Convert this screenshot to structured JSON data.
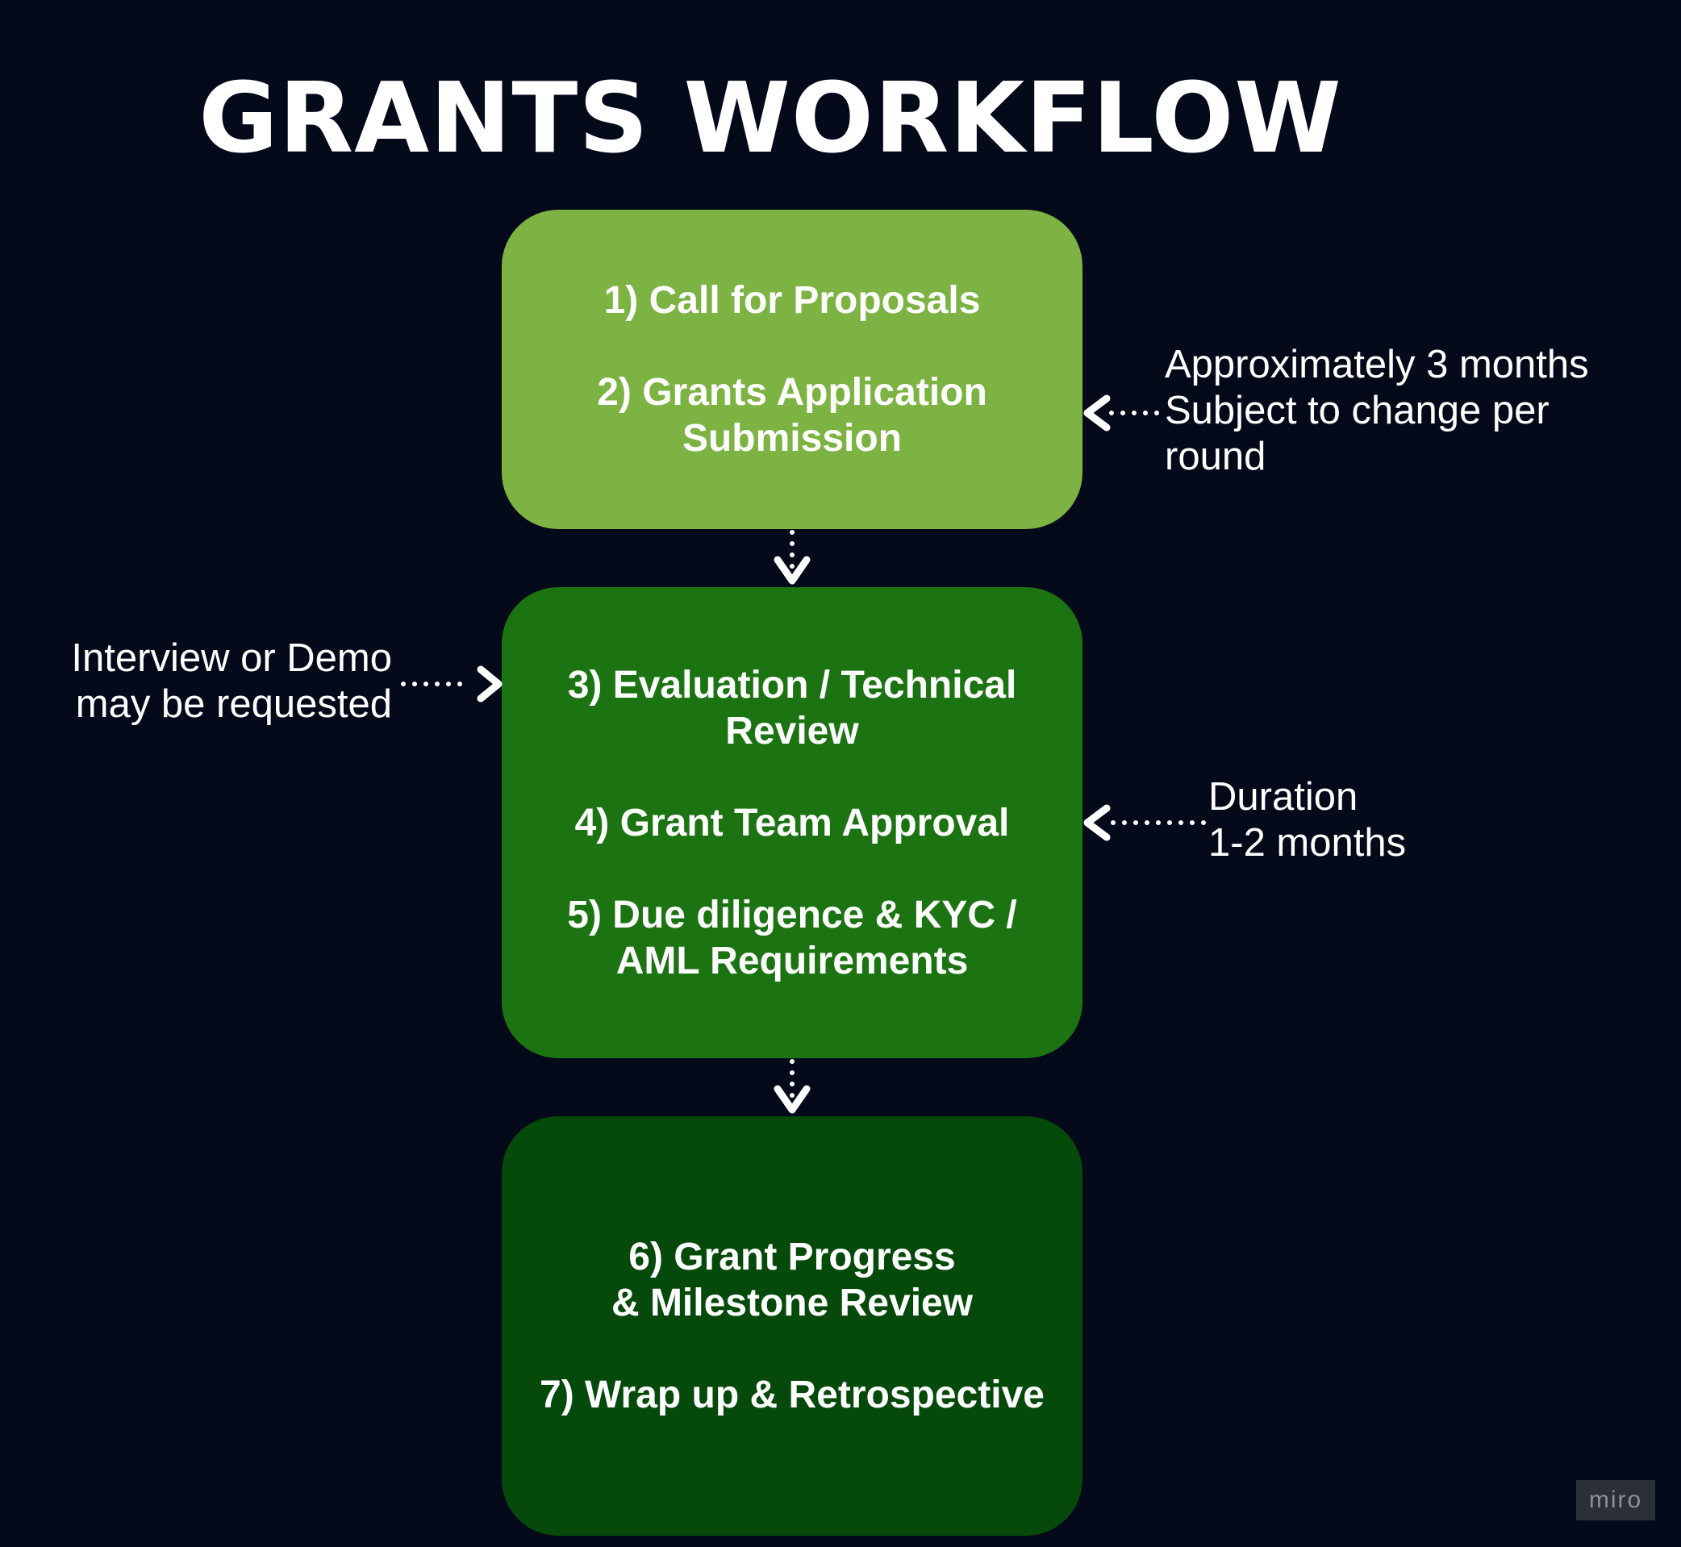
{
  "title": "GRANTS WORKFLOW",
  "boxes": [
    {
      "steps": [
        "1) Call for Proposals",
        "2) Grants Application\nSubmission"
      ],
      "color": "#7cb342"
    },
    {
      "steps": [
        "3) Evaluation / Technical\nReview",
        "4) Grant Team Approval",
        "5) Due diligence & KYC /\nAML Requirements"
      ],
      "color": "#1b7411"
    },
    {
      "steps": [
        "6) Grant Progress\n& Milestone Review",
        "7) Wrap up & Retrospective"
      ],
      "color": "#054a0a"
    }
  ],
  "notes": {
    "top_right": [
      "Approximately 3 months",
      "Subject to change per",
      "round"
    ],
    "left": [
      "Interview or Demo",
      "may be requested"
    ],
    "middle_right": [
      "Duration",
      "1-2 months"
    ]
  },
  "watermark": "miro",
  "background_color": "#050a1a"
}
